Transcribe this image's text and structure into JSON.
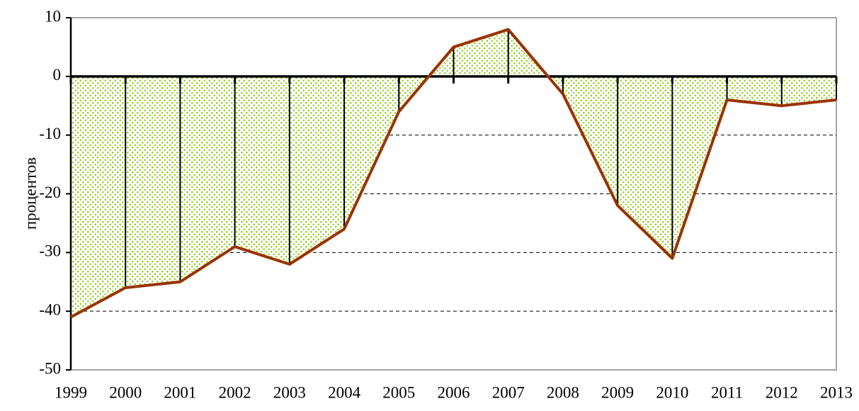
{
  "chart_data": {
    "type": "area",
    "y_label": "процентов",
    "categories": [
      "1999",
      "2000",
      "2001",
      "2002",
      "2003",
      "2004",
      "2005",
      "2006",
      "2007",
      "2008",
      "2009",
      "2010",
      "2011",
      "2012",
      "2013"
    ],
    "values": [
      -41,
      -36,
      -35,
      -29,
      -32,
      -26,
      -6,
      5,
      8,
      -3,
      -22,
      -31,
      -4,
      -5,
      -4
    ],
    "line_color": "#993300",
    "fill_color": "#9acd32",
    "ylim": [
      -50,
      10
    ],
    "yticks": [
      -50,
      -40,
      -30,
      -20,
      -10,
      0,
      10
    ],
    "grid": true,
    "drop_lines": true
  }
}
